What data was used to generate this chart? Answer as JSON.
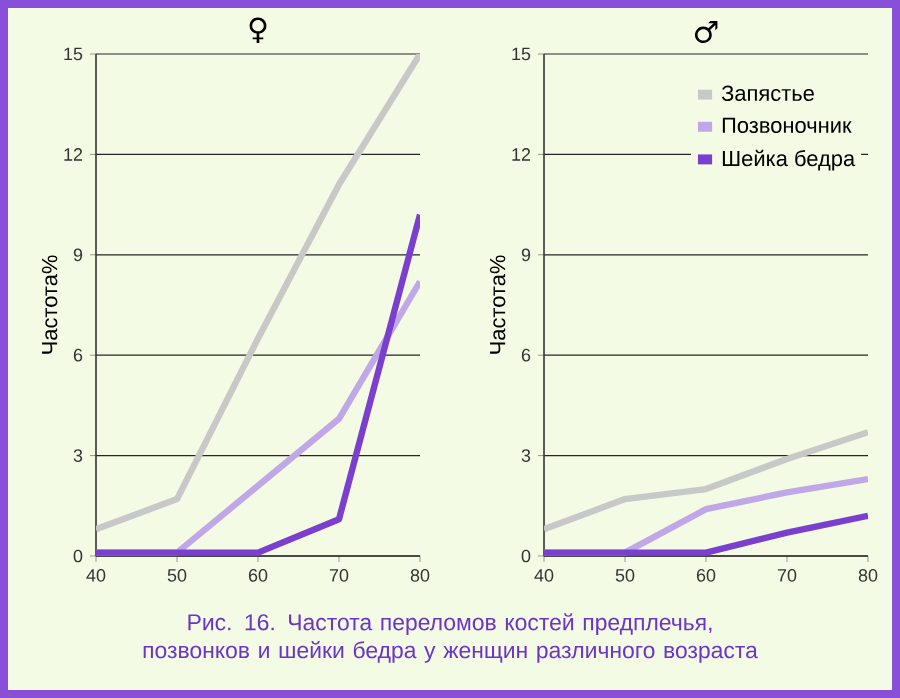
{
  "chart_data": [
    {
      "type": "line",
      "title": "♀",
      "ylabel": "Частота%",
      "x": [
        40,
        50,
        60,
        70,
        80
      ],
      "xlim": [
        40,
        80
      ],
      "xticks": [
        40,
        50,
        60,
        70,
        80
      ],
      "ylim": [
        0,
        15
      ],
      "yticks": [
        0,
        3,
        6,
        9,
        12,
        15
      ],
      "grid": "y",
      "legend": false,
      "series": [
        {
          "color": "#c8c8c8",
          "values": [
            0.8,
            1.7,
            6.5,
            11.1,
            15
          ]
        },
        {
          "color": "#c0a8e8",
          "values": [
            0.1,
            0.1,
            2.1,
            4.1,
            8.2
          ]
        },
        {
          "color": "#7b3fd0",
          "values": [
            0.1,
            0.1,
            0.1,
            1.1,
            10.2
          ]
        }
      ],
      "annotations": [
        "Рис. 16. Частота переломов костей предплечья, позвонков и шейки бедра у женщин различного возраста"
      ]
    },
    {
      "type": "line",
      "title": "♂",
      "ylabel": "Частота%",
      "x": [
        40,
        50,
        60,
        70,
        80
      ],
      "xlim": [
        40,
        80
      ],
      "xticks": [
        40,
        50,
        60,
        70,
        80
      ],
      "ylim": [
        0,
        15
      ],
      "yticks": [
        0,
        3,
        6,
        9,
        12,
        15
      ],
      "grid": "y",
      "legend": "top right",
      "series": [
        {
          "name": "Запястье",
          "color": "#c8c8c8",
          "values": [
            0.8,
            1.7,
            2.0,
            2.9,
            3.7
          ]
        },
        {
          "name": "Позвоночник",
          "color": "#c0a8e8",
          "values": [
            0.1,
            0.1,
            1.4,
            1.9,
            2.3
          ]
        },
        {
          "name": "Шейка бедра",
          "color": "#7b3fd0",
          "values": [
            0.1,
            0.1,
            0.1,
            0.7,
            1.2
          ]
        }
      ]
    }
  ]
}
